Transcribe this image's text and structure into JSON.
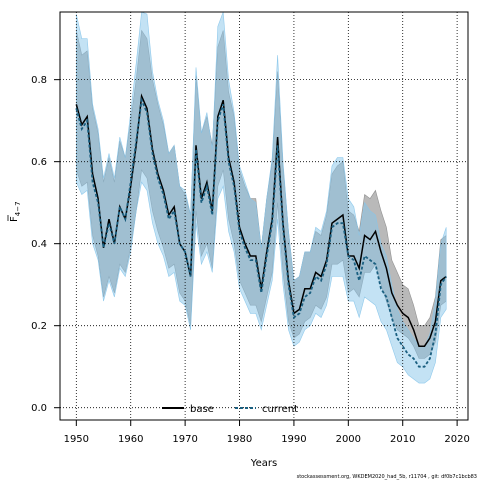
{
  "chart_data": {
    "type": "line",
    "xlabel": "Years",
    "ylabel": "F̄4–7",
    "ylabel_main": "F",
    "ylabel_sub": "4−7",
    "xlim": [
      1947,
      2022
    ],
    "ylim": [
      -0.03,
      0.965
    ],
    "xticks": [
      1950,
      1960,
      1970,
      1980,
      1990,
      2000,
      2010,
      2020
    ],
    "yticks": [
      0.0,
      0.2,
      0.4,
      0.6,
      0.8
    ],
    "grid": true,
    "legend_position": "bottom-center",
    "series": [
      {
        "name": "base",
        "color": "#000000",
        "band_color": "#8a8a8a",
        "style": "solid",
        "x": [
          1950,
          1951,
          1952,
          1953,
          1954,
          1955,
          1956,
          1957,
          1958,
          1959,
          1960,
          1961,
          1962,
          1963,
          1964,
          1965,
          1966,
          1967,
          1968,
          1969,
          1970,
          1971,
          1972,
          1973,
          1974,
          1975,
          1976,
          1977,
          1978,
          1979,
          1980,
          1981,
          1982,
          1983,
          1984,
          1985,
          1986,
          1987,
          1988,
          1989,
          1990,
          1991,
          1992,
          1993,
          1994,
          1995,
          1996,
          1997,
          1998,
          1999,
          2000,
          2001,
          2002,
          2003,
          2004,
          2005,
          2006,
          2007,
          2008,
          2009,
          2010,
          2011,
          2012,
          2013,
          2014,
          2015,
          2016,
          2017,
          2018
        ],
        "y": [
          0.74,
          0.69,
          0.71,
          0.57,
          0.51,
          0.39,
          0.46,
          0.4,
          0.49,
          0.46,
          0.54,
          0.64,
          0.76,
          0.73,
          0.63,
          0.57,
          0.53,
          0.47,
          0.49,
          0.4,
          0.38,
          0.32,
          0.64,
          0.51,
          0.55,
          0.48,
          0.71,
          0.75,
          0.61,
          0.55,
          0.44,
          0.4,
          0.37,
          0.37,
          0.29,
          0.38,
          0.46,
          0.66,
          0.45,
          0.31,
          0.23,
          0.24,
          0.29,
          0.29,
          0.33,
          0.32,
          0.36,
          0.45,
          0.46,
          0.47,
          0.37,
          0.37,
          0.34,
          0.42,
          0.41,
          0.43,
          0.38,
          0.34,
          0.28,
          0.25,
          0.23,
          0.22,
          0.19,
          0.15,
          0.15,
          0.17,
          0.21,
          0.31,
          0.32
        ],
        "lower": [
          0.58,
          0.54,
          0.55,
          0.42,
          0.37,
          0.27,
          0.32,
          0.28,
          0.35,
          0.33,
          0.39,
          0.48,
          0.58,
          0.56,
          0.48,
          0.43,
          0.39,
          0.34,
          0.35,
          0.28,
          0.26,
          0.2,
          0.48,
          0.37,
          0.4,
          0.34,
          0.54,
          0.58,
          0.46,
          0.4,
          0.31,
          0.28,
          0.25,
          0.25,
          0.21,
          0.27,
          0.33,
          0.5,
          0.33,
          0.21,
          0.17,
          0.18,
          0.21,
          0.22,
          0.25,
          0.24,
          0.27,
          0.35,
          0.35,
          0.36,
          0.28,
          0.29,
          0.27,
          0.33,
          0.33,
          0.35,
          0.3,
          0.26,
          0.22,
          0.19,
          0.18,
          0.17,
          0.15,
          0.12,
          0.12,
          0.13,
          0.16,
          0.25,
          0.26
        ],
        "upper": [
          0.92,
          0.86,
          0.87,
          0.73,
          0.67,
          0.55,
          0.61,
          0.55,
          0.65,
          0.61,
          0.7,
          0.8,
          0.92,
          0.9,
          0.8,
          0.74,
          0.69,
          0.62,
          0.64,
          0.54,
          0.52,
          0.47,
          0.81,
          0.67,
          0.71,
          0.64,
          0.88,
          0.92,
          0.77,
          0.71,
          0.58,
          0.54,
          0.51,
          0.51,
          0.39,
          0.51,
          0.6,
          0.82,
          0.59,
          0.43,
          0.31,
          0.32,
          0.38,
          0.38,
          0.43,
          0.42,
          0.47,
          0.57,
          0.59,
          0.6,
          0.48,
          0.47,
          0.43,
          0.52,
          0.51,
          0.53,
          0.48,
          0.44,
          0.36,
          0.33,
          0.3,
          0.29,
          0.25,
          0.2,
          0.2,
          0.22,
          0.27,
          0.41,
          0.42
        ]
      },
      {
        "name": "current",
        "color": "#1a5f80",
        "band_color": "#87c5ea",
        "style": "dashed",
        "x": [
          1950,
          1951,
          1952,
          1953,
          1954,
          1955,
          1956,
          1957,
          1958,
          1959,
          1960,
          1961,
          1962,
          1963,
          1964,
          1965,
          1966,
          1967,
          1968,
          1969,
          1970,
          1971,
          1972,
          1973,
          1974,
          1975,
          1976,
          1977,
          1978,
          1979,
          1980,
          1981,
          1982,
          1983,
          1984,
          1985,
          1986,
          1987,
          1988,
          1989,
          1990,
          1991,
          1992,
          1993,
          1994,
          1995,
          1996,
          1997,
          1998,
          1999,
          2000,
          2001,
          2002,
          2003,
          2004,
          2005,
          2006,
          2007,
          2008,
          2009,
          2010,
          2011,
          2012,
          2013,
          2014,
          2015,
          2016,
          2017,
          2018
        ],
        "y": [
          0.73,
          0.68,
          0.7,
          0.55,
          0.5,
          0.39,
          0.45,
          0.4,
          0.49,
          0.46,
          0.55,
          0.65,
          0.75,
          0.72,
          0.62,
          0.56,
          0.52,
          0.46,
          0.48,
          0.4,
          0.38,
          0.32,
          0.63,
          0.5,
          0.54,
          0.47,
          0.7,
          0.74,
          0.6,
          0.54,
          0.43,
          0.39,
          0.36,
          0.36,
          0.28,
          0.37,
          0.45,
          0.64,
          0.44,
          0.3,
          0.22,
          0.23,
          0.27,
          0.28,
          0.32,
          0.31,
          0.35,
          0.44,
          0.45,
          0.45,
          0.37,
          0.36,
          0.31,
          0.37,
          0.36,
          0.35,
          0.29,
          0.27,
          0.22,
          0.17,
          0.15,
          0.13,
          0.12,
          0.1,
          0.1,
          0.12,
          0.18,
          0.3,
          0.32
        ],
        "lower": [
          0.55,
          0.52,
          0.53,
          0.4,
          0.36,
          0.26,
          0.31,
          0.27,
          0.34,
          0.32,
          0.38,
          0.48,
          0.55,
          0.53,
          0.45,
          0.4,
          0.37,
          0.32,
          0.33,
          0.26,
          0.25,
          0.19,
          0.45,
          0.35,
          0.38,
          0.33,
          0.51,
          0.54,
          0.43,
          0.38,
          0.29,
          0.26,
          0.23,
          0.23,
          0.19,
          0.25,
          0.31,
          0.46,
          0.3,
          0.19,
          0.15,
          0.16,
          0.19,
          0.2,
          0.23,
          0.22,
          0.25,
          0.32,
          0.32,
          0.32,
          0.26,
          0.26,
          0.22,
          0.27,
          0.26,
          0.25,
          0.21,
          0.19,
          0.15,
          0.11,
          0.1,
          0.08,
          0.07,
          0.06,
          0.06,
          0.07,
          0.11,
          0.22,
          0.24
        ],
        "upper": [
          0.96,
          0.9,
          0.9,
          0.74,
          0.68,
          0.56,
          0.62,
          0.56,
          0.66,
          0.61,
          0.72,
          0.84,
          1.0,
          0.96,
          0.82,
          0.75,
          0.7,
          0.62,
          0.64,
          0.54,
          0.53,
          0.47,
          0.83,
          0.67,
          0.72,
          0.63,
          0.93,
          0.97,
          0.8,
          0.72,
          0.59,
          0.55,
          0.51,
          0.5,
          0.39,
          0.51,
          0.61,
          0.86,
          0.6,
          0.43,
          0.31,
          0.32,
          0.38,
          0.38,
          0.44,
          0.43,
          0.48,
          0.59,
          0.61,
          0.61,
          0.51,
          0.49,
          0.42,
          0.5,
          0.48,
          0.47,
          0.4,
          0.37,
          0.3,
          0.24,
          0.21,
          0.19,
          0.17,
          0.15,
          0.15,
          0.18,
          0.26,
          0.4,
          0.44
        ]
      }
    ]
  },
  "footer": "stockassessment.org,  WKDEM2020_had_5b,  r11704 ,  git:  df0b7c1bcb83"
}
